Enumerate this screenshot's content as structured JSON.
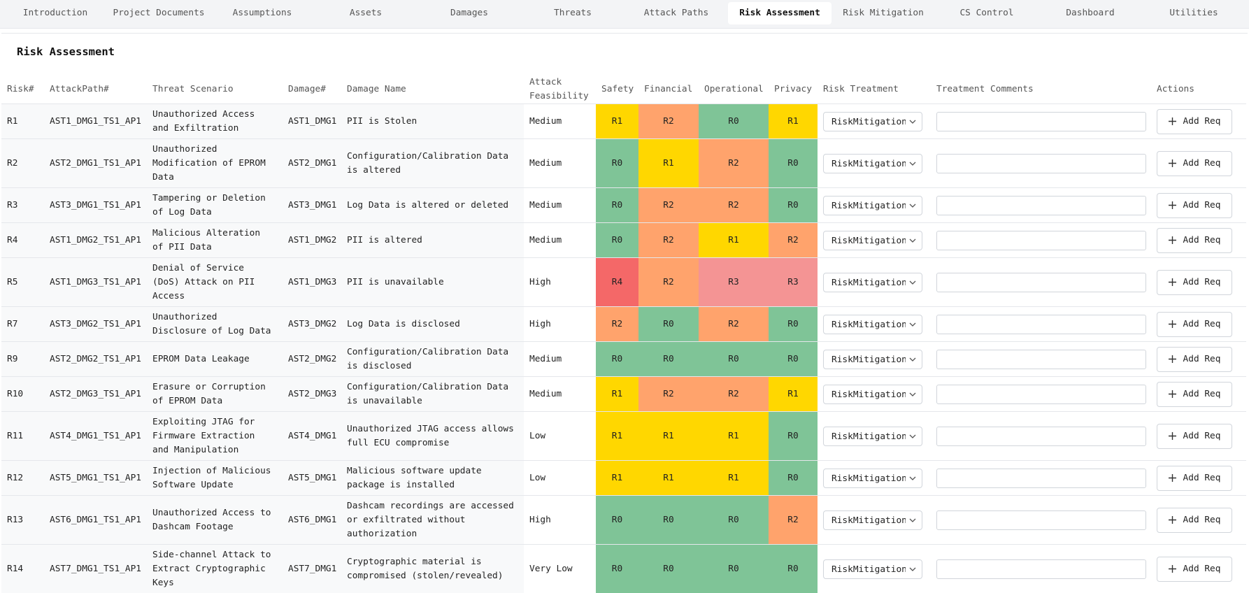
{
  "tabs": [
    "Introduction",
    "Project Documents",
    "Assumptions",
    "Assets",
    "Damages",
    "Threats",
    "Attack Paths",
    "Risk Assessment",
    "Risk Mitigation",
    "CS Control",
    "Dashboard",
    "Utilities"
  ],
  "active_tab": 7,
  "panel": {
    "title": "Risk Assessment"
  },
  "level_colors": {
    "R0": "#7fc497",
    "R1": "#ffd700",
    "R2": "#ffa36c",
    "R3": "#f49494",
    "R4": "#f46868"
  },
  "table": {
    "headers": [
      "Risk#",
      "AttackPath#",
      "Threat Scenario",
      "Damage#",
      "Damage Name",
      "Attack Feasibility",
      "Safety",
      "Financial",
      "Operational",
      "Privacy",
      "Risk Treatment",
      "Treatment Comments",
      "Actions"
    ],
    "rows": [
      {
        "risk": "R1",
        "attack_path": "AST1_DMG1_TS1_AP1",
        "threat": "Unauthorized Access and Exfiltration",
        "damage": "AST1_DMG1",
        "damage_name": "PII is Stolen",
        "feasibility": "Medium",
        "levels": [
          "R1",
          "R2",
          "R0",
          "R1"
        ],
        "treatment": "RiskMitigation",
        "action": "Add Req"
      },
      {
        "risk": "R2",
        "attack_path": "AST2_DMG1_TS1_AP1",
        "threat": "Unauthorized Modification of EPROM Data",
        "damage": "AST2_DMG1",
        "damage_name": "Configuration/Calibration Data is altered",
        "feasibility": "Medium",
        "levels": [
          "R0",
          "R1",
          "R2",
          "R0"
        ],
        "treatment": "RiskMitigation",
        "action": "Add Req"
      },
      {
        "risk": "R3",
        "attack_path": "AST3_DMG1_TS1_AP1",
        "threat": "Tampering or Deletion of Log Data",
        "damage": "AST3_DMG1",
        "damage_name": "Log Data is altered or deleted",
        "feasibility": "Medium",
        "levels": [
          "R0",
          "R2",
          "R2",
          "R0"
        ],
        "treatment": "RiskMitigation",
        "action": "Add Req"
      },
      {
        "risk": "R4",
        "attack_path": "AST1_DMG2_TS1_AP1",
        "threat": "Malicious Alteration of PII Data",
        "damage": "AST1_DMG2",
        "damage_name": "PII is altered",
        "feasibility": "Medium",
        "levels": [
          "R0",
          "R2",
          "R1",
          "R2"
        ],
        "treatment": "RiskMitigation",
        "action": "Add Req"
      },
      {
        "risk": "R5",
        "attack_path": "AST1_DMG3_TS1_AP1",
        "threat": "Denial of Service (DoS) Attack on PII Access",
        "damage": "AST1_DMG3",
        "damage_name": "PII is unavailable",
        "feasibility": "High",
        "levels": [
          "R4",
          "R2",
          "R3",
          "R3"
        ],
        "treatment": "RiskMitigation",
        "action": "Add Req"
      },
      {
        "risk": "R7",
        "attack_path": "AST3_DMG2_TS1_AP1",
        "threat": "Unauthorized Disclosure of Log Data",
        "damage": "AST3_DMG2",
        "damage_name": "Log Data is disclosed",
        "feasibility": "High",
        "levels": [
          "R2",
          "R0",
          "R2",
          "R0"
        ],
        "treatment": "RiskMitigation",
        "action": "Add Req"
      },
      {
        "risk": "R9",
        "attack_path": "AST2_DMG2_TS1_AP1",
        "threat": "EPROM Data Leakage",
        "damage": "AST2_DMG2",
        "damage_name": "Configuration/Calibration Data is disclosed",
        "feasibility": "Medium",
        "levels": [
          "R0",
          "R0",
          "R0",
          "R0"
        ],
        "treatment": "RiskMitigation",
        "action": "Add Req"
      },
      {
        "risk": "R10",
        "attack_path": "AST2_DMG3_TS1_AP1",
        "threat": "Erasure or Corruption of EPROM Data",
        "damage": "AST2_DMG3",
        "damage_name": "Configuration/Calibration Data is unavailable",
        "feasibility": "Medium",
        "levels": [
          "R1",
          "R2",
          "R2",
          "R1"
        ],
        "treatment": "RiskMitigation",
        "action": "Add Req"
      },
      {
        "risk": "R11",
        "attack_path": "AST4_DMG1_TS1_AP1",
        "threat": "Exploiting JTAG for Firmware Extraction and Manipulation",
        "damage": "AST4_DMG1",
        "damage_name": "Unauthorized JTAG access allows full ECU compromise",
        "feasibility": "Low",
        "levels": [
          "R1",
          "R1",
          "R1",
          "R0"
        ],
        "treatment": "RiskMitigation",
        "action": "Add Req"
      },
      {
        "risk": "R12",
        "attack_path": "AST5_DMG1_TS1_AP1",
        "threat": "Injection of Malicious Software Update",
        "damage": "AST5_DMG1",
        "damage_name": "Malicious software update package is installed",
        "feasibility": "Low",
        "levels": [
          "R1",
          "R1",
          "R1",
          "R0"
        ],
        "treatment": "RiskMitigation",
        "action": "Add Req"
      },
      {
        "risk": "R13",
        "attack_path": "AST6_DMG1_TS1_AP1",
        "threat": "Unauthorized Access to Dashcam Footage",
        "damage": "AST6_DMG1",
        "damage_name": "Dashcam recordings are accessed or exfiltrated without authorization",
        "feasibility": "High",
        "levels": [
          "R0",
          "R0",
          "R0",
          "R2"
        ],
        "treatment": "RiskMitigation",
        "action": "Add Req"
      },
      {
        "risk": "R14",
        "attack_path": "AST7_DMG1_TS1_AP1",
        "threat": "Side-channel Attack to Extract Cryptographic Keys",
        "damage": "AST7_DMG1",
        "damage_name": "Cryptographic material is compromised (stolen/revealed)",
        "feasibility": "Very Low",
        "levels": [
          "R0",
          "R0",
          "R0",
          "R0"
        ],
        "treatment": "RiskMitigation",
        "action": "Add Req"
      }
    ]
  }
}
